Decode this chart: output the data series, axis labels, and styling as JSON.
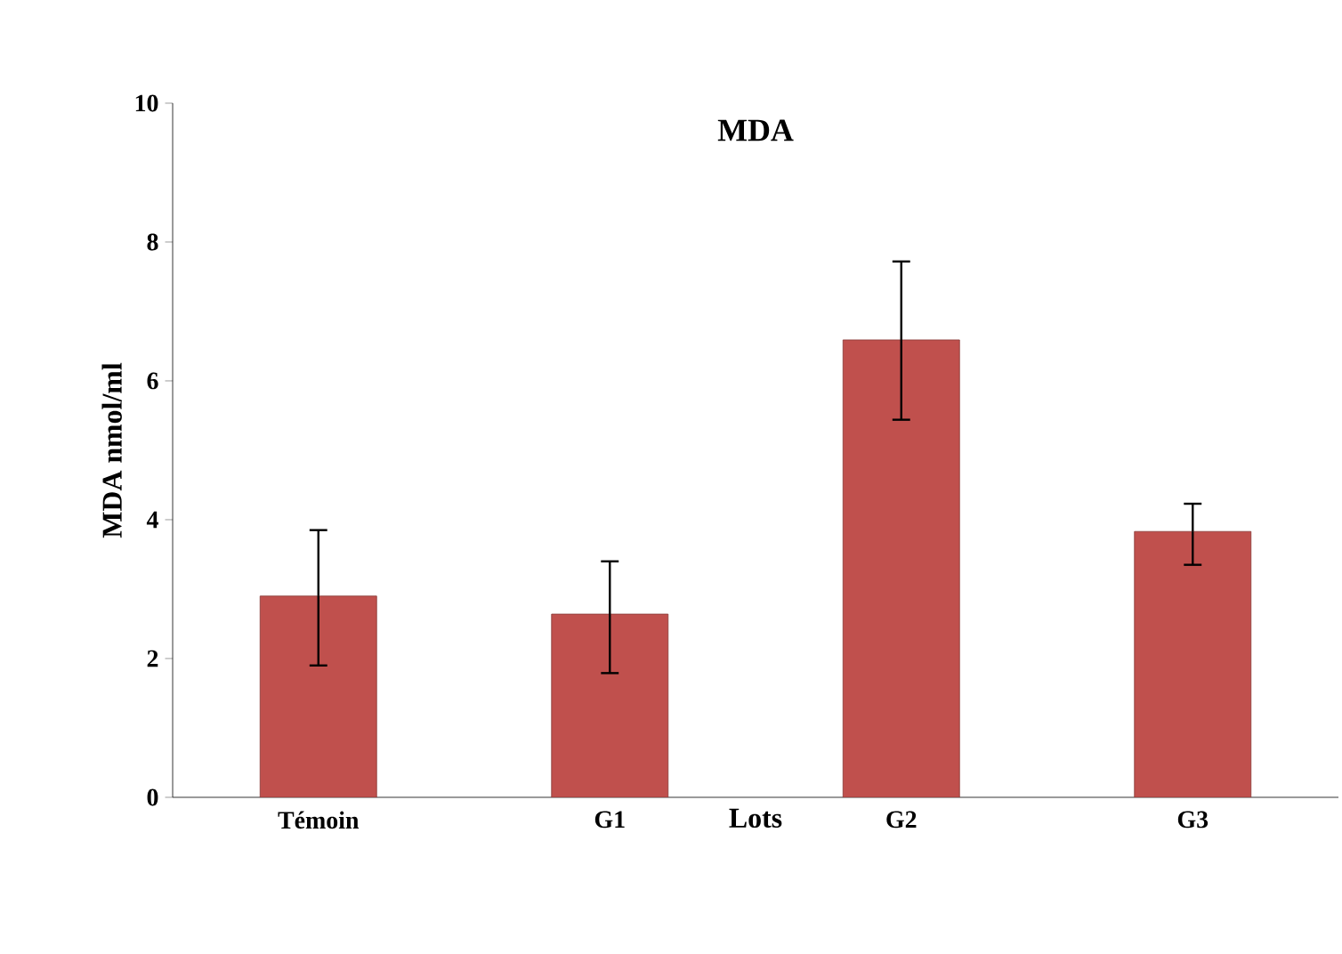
{
  "chart_data": {
    "type": "bar",
    "title": "MDA",
    "xlabel": "Lots",
    "ylabel": "MDA nmol/ml",
    "categories": [
      "Témoin",
      "G1",
      "G2",
      "G3"
    ],
    "values": [
      2.9,
      2.64,
      6.59,
      3.83
    ],
    "errors": [
      [
        1.9,
        3.85
      ],
      [
        1.79,
        3.4
      ],
      [
        5.44,
        7.72
      ],
      [
        3.35,
        4.23
      ]
    ],
    "color": "#c0504d",
    "ylim": [
      0,
      10
    ],
    "yticks": [
      0,
      2,
      4,
      6,
      8,
      10
    ],
    "grid": false
  }
}
